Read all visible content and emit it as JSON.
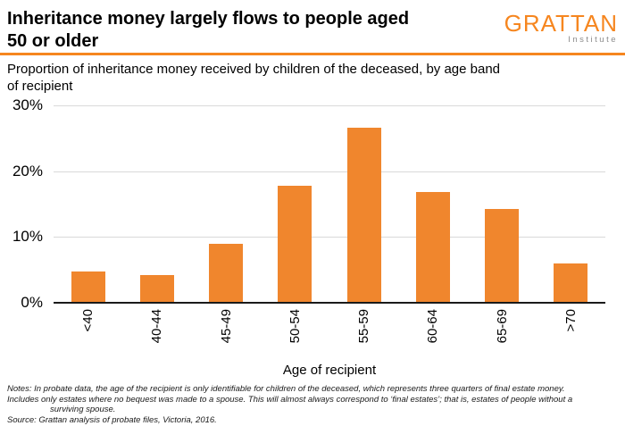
{
  "header": {
    "title": "Inheritance money largely flows to people aged 50 or older",
    "title_lines": [
      "Inheritance money largely flows to people aged",
      "50 or older"
    ],
    "logo_text": "GRATTAN",
    "logo_subtext": "Institute"
  },
  "subtitle_lines": [
    "Proportion of inheritance money received by children of the deceased, by age band",
    "of recipient"
  ],
  "chart_data": {
    "type": "bar",
    "title": "Proportion of inheritance money received by children of the deceased, by age band of recipient",
    "categories": [
      "<40",
      "40-44",
      "45-49",
      "50-54",
      "55-59",
      "60-64",
      "65-69",
      ">70"
    ],
    "values": [
      4.8,
      4.2,
      9.0,
      17.8,
      26.6,
      16.8,
      14.2,
      6.0
    ],
    "xlabel": "Age of recipient",
    "ylabel": "",
    "ylim": [
      0,
      30
    ],
    "yticks": [
      {
        "value": 0,
        "label": "0%"
      },
      {
        "value": 10,
        "label": "10%"
      },
      {
        "value": 20,
        "label": "20%"
      },
      {
        "value": 30,
        "label": "30%"
      }
    ],
    "grid": "horizontal",
    "legend": "none",
    "bar_color": "#F0862D",
    "gridline_color": "#D9D9D9",
    "axis_color": "#1A1A1A"
  },
  "footer": {
    "notes_line1": "Notes: In probate data, the age of the recipient is only identifiable for children of the deceased, which represents three quarters of final estate money.",
    "notes_line2": "Includes only estates where no bequest was made to a spouse. This will almost always correspond to ‘final estates’; that is, estates of people without a",
    "notes_line3": "surviving spouse.",
    "source": "Source: Grattan analysis of probate files, Victoria, 2016."
  },
  "colors": {
    "accent_orange": "#F6861F",
    "logo_sub_gray": "#8C8C8C"
  }
}
